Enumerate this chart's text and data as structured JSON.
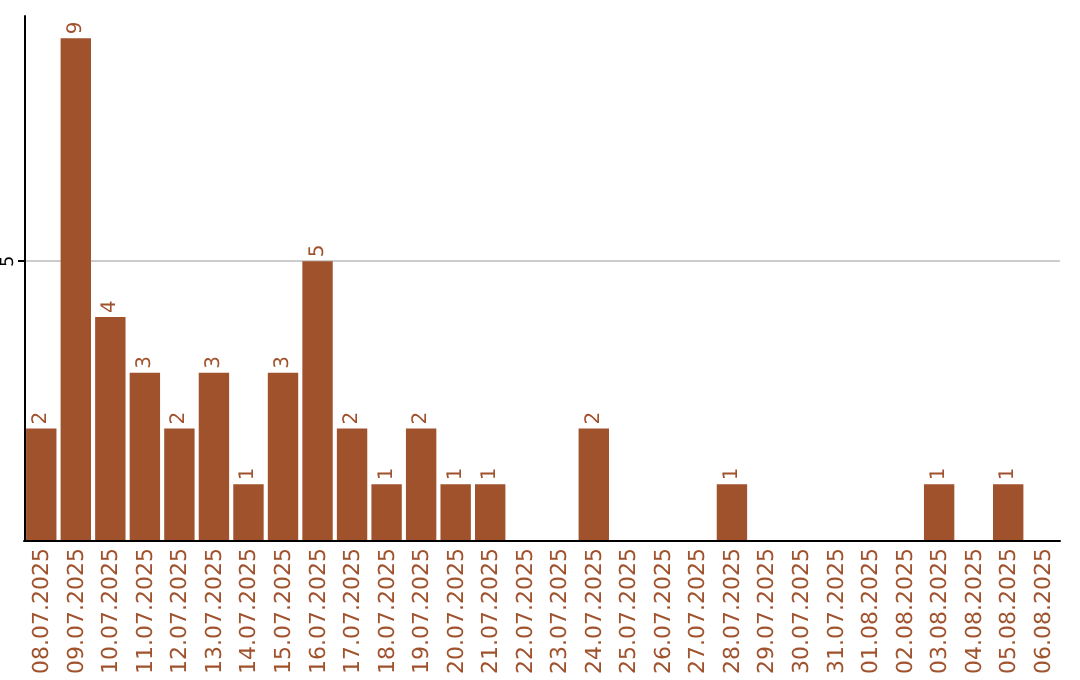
{
  "chart_data": {
    "type": "bar",
    "categories": [
      "08.07.2025",
      "09.07.2025",
      "10.07.2025",
      "11.07.2025",
      "12.07.2025",
      "13.07.2025",
      "14.07.2025",
      "15.07.2025",
      "16.07.2025",
      "17.07.2025",
      "18.07.2025",
      "19.07.2025",
      "20.07.2025",
      "21.07.2025",
      "22.07.2025",
      "23.07.2025",
      "24.07.2025",
      "25.07.2025",
      "26.07.2025",
      "27.07.2025",
      "28.07.2025",
      "29.07.2025",
      "30.07.2025",
      "31.07.2025",
      "01.08.2025",
      "02.08.2025",
      "03.08.2025",
      "04.08.2025",
      "05.08.2025",
      "06.08.2025"
    ],
    "values": [
      2,
      9,
      4,
      3,
      2,
      3,
      1,
      3,
      5,
      2,
      1,
      2,
      1,
      1,
      0,
      0,
      2,
      0,
      0,
      0,
      1,
      0,
      0,
      0,
      0,
      0,
      1,
      0,
      1,
      0
    ],
    "value_labels": [
      "2",
      "9",
      "4",
      "3",
      "2",
      "3",
      "1",
      "3",
      "5",
      "2",
      "1",
      "2",
      "1",
      "1",
      null,
      null,
      "2",
      null,
      null,
      null,
      "1",
      null,
      null,
      null,
      null,
      null,
      "1",
      null,
      "1",
      null
    ],
    "color": "#a0522d",
    "ylim": [
      0,
      9.4
    ],
    "yticks": [
      5
    ],
    "grid": "y"
  }
}
